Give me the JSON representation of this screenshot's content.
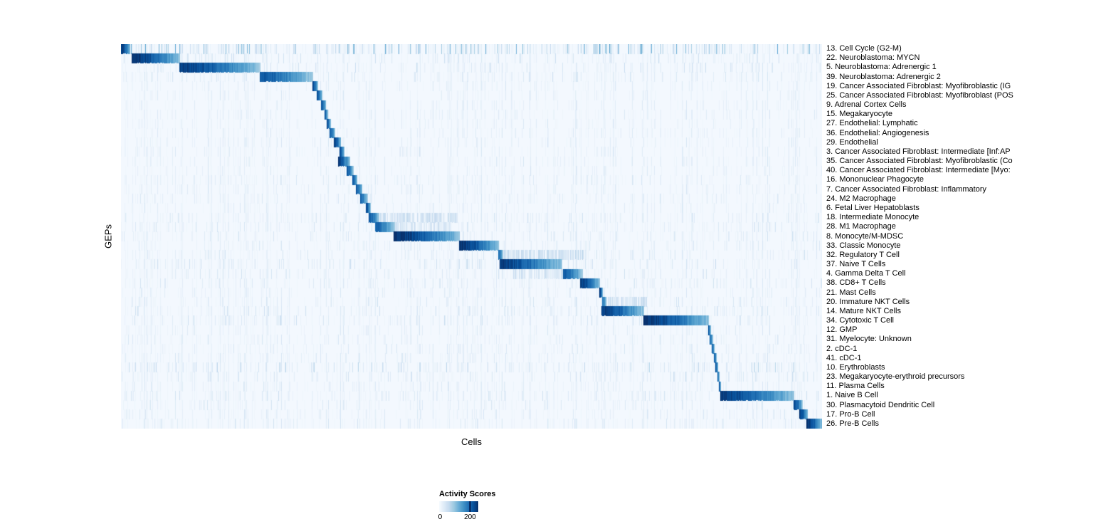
{
  "chart_data": {
    "type": "heatmap",
    "xlabel": "Cells",
    "ylabel": "GEPs",
    "legend": {
      "title": "Activity Scores",
      "min": 0,
      "max": 200,
      "tick_labels": [
        "0",
        "200"
      ]
    },
    "colormap": [
      "#f7fbff",
      "#deebf7",
      "#c6dbef",
      "#9ecae1",
      "#6baed6",
      "#4292c6",
      "#2171b5",
      "#08519c",
      "#08306b"
    ],
    "layout": {
      "grid": false,
      "legend_position": "bottom-center",
      "cells_ordered_by": "max-activity GEP, producing diagonal block structure",
      "value_scale_fraction_of_max": "block peak 1.0 = activity score ~200+"
    },
    "rows": [
      {
        "label": "13. Cell Cycle (G2-M)",
        "block": [
          0.0,
          0.013
        ],
        "peak": 0.95,
        "noise": 0.85
      },
      {
        "label": "22. Neuroblastoma: MYCN",
        "block": [
          0.016,
          0.084
        ],
        "peak": 1.0,
        "noise": 0.3
      },
      {
        "label": "5. Neuroblastoma: Adrenergic 1",
        "block": [
          0.084,
          0.198
        ],
        "peak": 0.95,
        "noise": 0.3
      },
      {
        "label": "39. Neuroblastoma: Adrenergic 2",
        "block": [
          0.198,
          0.274
        ],
        "peak": 0.85,
        "noise": 0.25
      },
      {
        "label": "19. Cancer Associated Fibroblast: Myofibroblastic (IG",
        "block": [
          0.274,
          0.281
        ],
        "peak": 0.9,
        "noise": 0.12
      },
      {
        "label": "25. Cancer Associated Fibroblast: Myofibroblast (POS",
        "block": [
          0.28,
          0.287
        ],
        "peak": 0.9,
        "noise": 0.12
      },
      {
        "label": "9. Adrenal Cortex Cells",
        "block": [
          0.286,
          0.292
        ],
        "peak": 0.9,
        "noise": 0.1
      },
      {
        "label": "15. Megakaryocyte",
        "block": [
          0.291,
          0.295
        ],
        "peak": 0.85,
        "noise": 0.15
      },
      {
        "label": "27. Endothelial: Lymphatic",
        "block": [
          0.294,
          0.299
        ],
        "peak": 0.9,
        "noise": 0.1
      },
      {
        "label": "36. Endothelial: Angiogenesis",
        "block": [
          0.298,
          0.305
        ],
        "peak": 0.85,
        "noise": 0.12
      },
      {
        "label": "29. Endothelial",
        "block": [
          0.304,
          0.313
        ],
        "peak": 0.95,
        "noise": 0.12
      },
      {
        "label": "3. Cancer Associated Fibroblast: Intermediate [Inf:AP",
        "block": [
          0.312,
          0.318
        ],
        "peak": 0.85,
        "noise": 0.15
      },
      {
        "label": "35. Cancer Associated Fibroblast: Myofibroblastic (Co",
        "block": [
          0.31,
          0.326
        ],
        "peak": 0.95,
        "noise": 0.12
      },
      {
        "label": "40. Cancer Associated Fibroblast: Intermediate [Myo:",
        "block": [
          0.322,
          0.331
        ],
        "peak": 0.85,
        "noise": 0.12
      },
      {
        "label": "16. Mononuclear Phagocyte",
        "block": [
          0.33,
          0.337
        ],
        "peak": 0.85,
        "noise": 0.2
      },
      {
        "label": "7. Cancer Associated Fibroblast: Inflammatory",
        "block": [
          0.336,
          0.344
        ],
        "peak": 0.85,
        "noise": 0.15
      },
      {
        "label": "24. M2 Macrophage",
        "block": [
          0.342,
          0.352
        ],
        "peak": 0.8,
        "noise": 0.2
      },
      {
        "label": "6. Fetal Liver Hepatoblasts",
        "block": [
          0.35,
          0.356
        ],
        "peak": 0.9,
        "noise": 0.12
      },
      {
        "label": "18. Intermediate Monocyte",
        "block": [
          0.354,
          0.368
        ],
        "peak": 0.85,
        "noise": 0.25,
        "diffuse": [
          0.37,
          0.48,
          0.2
        ]
      },
      {
        "label": "28. M1 Macrophage",
        "block": [
          0.363,
          0.39
        ],
        "peak": 0.8,
        "noise": 0.25,
        "diffuse": [
          0.39,
          0.47,
          0.18
        ]
      },
      {
        "label": "8. Monocyte/M-MDSC",
        "block": [
          0.389,
          0.483
        ],
        "peak": 1.0,
        "noise": 0.25
      },
      {
        "label": "33. Classic Monocyte",
        "block": [
          0.483,
          0.539
        ],
        "peak": 1.0,
        "noise": 0.2
      },
      {
        "label": "32. Regulatory T Cell",
        "block": [
          0.539,
          0.545
        ],
        "peak": 0.75,
        "noise": 0.25,
        "diffuse": [
          0.545,
          0.66,
          0.22
        ]
      },
      {
        "label": "37. Naive T Cells",
        "block": [
          0.541,
          0.629
        ],
        "peak": 0.95,
        "noise": 0.3
      },
      {
        "label": "4. Gamma Delta T Cell",
        "block": [
          0.631,
          0.658
        ],
        "peak": 0.85,
        "noise": 0.25,
        "diffuse": [
          0.56,
          0.63,
          0.18
        ]
      },
      {
        "label": "38. CD8+ T Cells",
        "block": [
          0.655,
          0.683
        ],
        "peak": 0.95,
        "noise": 0.25
      },
      {
        "label": "21. Mast Cells",
        "block": [
          0.683,
          0.687
        ],
        "peak": 0.95,
        "noise": 0.15
      },
      {
        "label": "20. Immature NKT Cells",
        "block": [
          0.687,
          0.692
        ],
        "peak": 0.75,
        "noise": 0.25,
        "diffuse": [
          0.692,
          0.75,
          0.22
        ]
      },
      {
        "label": "14. Mature NKT Cells",
        "block": [
          0.686,
          0.746
        ],
        "peak": 0.95,
        "noise": 0.3
      },
      {
        "label": "34. Cytotoxic T Cell",
        "block": [
          0.746,
          0.838
        ],
        "peak": 1.0,
        "noise": 0.3
      },
      {
        "label": "12. GMP",
        "block": [
          0.838,
          0.841
        ],
        "peak": 0.8,
        "noise": 0.15
      },
      {
        "label": "31. Myelocyte: Unknown",
        "block": [
          0.84,
          0.844
        ],
        "peak": 0.75,
        "noise": 0.2
      },
      {
        "label": "2. cDC-1",
        "block": [
          0.843,
          0.846
        ],
        "peak": 0.85,
        "noise": 0.2
      },
      {
        "label": "41. cDC-1",
        "block": [
          0.846,
          0.849
        ],
        "peak": 0.8,
        "noise": 0.2
      },
      {
        "label": "10. Erythroblasts",
        "block": [
          0.848,
          0.851
        ],
        "peak": 0.85,
        "noise": 0.45
      },
      {
        "label": "23. Megakaryocyte-erythroid precursors",
        "block": [
          0.851,
          0.853
        ],
        "peak": 0.8,
        "noise": 0.3
      },
      {
        "label": "11. Plasma Cells",
        "block": [
          0.853,
          0.855
        ],
        "peak": 0.85,
        "noise": 0.2
      },
      {
        "label": "1. Naive B Cell",
        "block": [
          0.855,
          0.96
        ],
        "peak": 0.95,
        "noise": 0.3
      },
      {
        "label": "30. Plasmacytoid Dendritic Cell",
        "block": [
          0.96,
          0.972
        ],
        "peak": 0.9,
        "noise": 0.2
      },
      {
        "label": "17. Pro-B Cell",
        "block": [
          0.968,
          0.979
        ],
        "peak": 0.95,
        "noise": 0.2
      },
      {
        "label": "26. Pre-B Cells",
        "block": [
          0.978,
          1.0
        ],
        "peak": 1.0,
        "noise": 0.25
      }
    ]
  }
}
